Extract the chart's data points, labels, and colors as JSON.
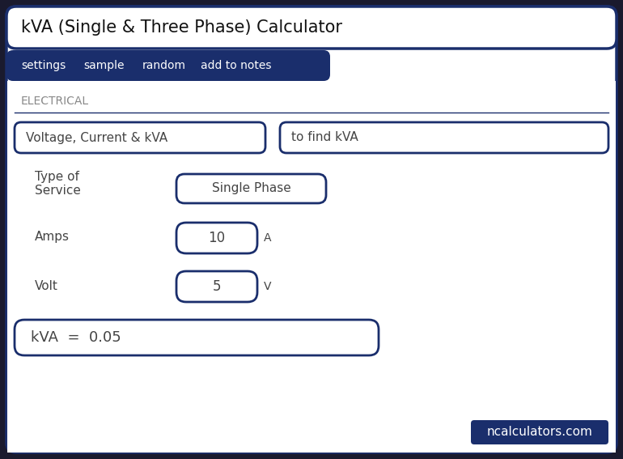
{
  "title": "kVA (Single & Three Phase) Calculator",
  "nav_items": [
    "settings",
    "sample",
    "random",
    "add to notes"
  ],
  "nav_bg": "#1a2e6c",
  "nav_text_color": "#ffffff",
  "section_label": "ELECTRICAL",
  "section_label_color": "#888888",
  "input1_label": "Voltage, Current & kVA",
  "input2_label": "to find kVA",
  "field1_label": "Type of\nService",
  "field1_value": "Single Phase",
  "field2_label": "Amps",
  "field2_value": "10",
  "field2_unit": "A",
  "field3_label": "Volt",
  "field3_value": "5",
  "field3_unit": "V",
  "result_label": "kVA  =  0.05",
  "footer_text": "ncalculators.com",
  "footer_bg": "#1a2e6c",
  "footer_text_color": "#ffffff",
  "border_color": "#1a2e6c",
  "outer_bg": "#1a1a2e",
  "inner_bg": "#ffffff",
  "title_bg": "#ffffff",
  "title_color": "#111111",
  "label_color": "#444444",
  "input_border_color": "#1a2e6c"
}
